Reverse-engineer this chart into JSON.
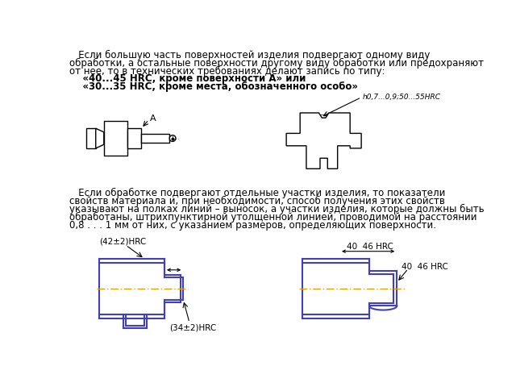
{
  "bg_color": "#ffffff",
  "text_color": "#000000",
  "blue_color": "#4040bb",
  "orange_dash": "#e8a000",
  "gray_dash": "#888888",
  "para1_lines": [
    "   Если большую часть поверхностей изделия подвергают одному виду",
    "обработки, а остальные поверхности другому виду обработки или предохраняют",
    "от нее, то в технических требованиях делают запись по типу:"
  ],
  "quote1": "    «40...45 HRC, кроме поверхности A» или",
  "quote2": "    «30...35 HRC, кроме места, обозначенного особо»",
  "annotation_shaft": "h0,7...0,9;50...55HRC",
  "label_A": "A",
  "para2_lines": [
    "   Если обработке подвергают отдельные участки изделия, то показатели",
    "свойств материала и, при необходимости, способ получения этих свойств",
    "указывают на полках линий – выносок, а участки изделия, которые должны быть",
    "обработаны, штрихпунктирной утолщенной линией, проводимой на расстоянии",
    "0,8 . . . 1 мм от них, с указанием размеров, определяющих поверхности."
  ],
  "label_42": "(42±2)HRC",
  "label_34": "(34±2)HRC",
  "label_40_46_top": "40  46 HRC",
  "label_40_46_right": "40  46 HRC"
}
